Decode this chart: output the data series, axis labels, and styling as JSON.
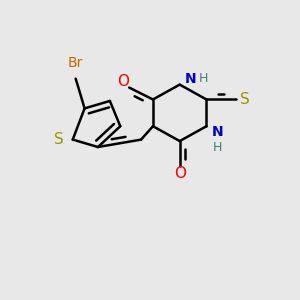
{
  "background_color": "#e8e8e8",
  "bond_color": "#000000",
  "bond_width": 1.8,
  "figsize": [
    3.0,
    3.0
  ],
  "dpi": 100,
  "colors": {
    "Br": "#cc6600",
    "S": "#999900",
    "O": "#ff0000",
    "N": "#0000cc",
    "H": "#408080",
    "C": "#000000"
  }
}
